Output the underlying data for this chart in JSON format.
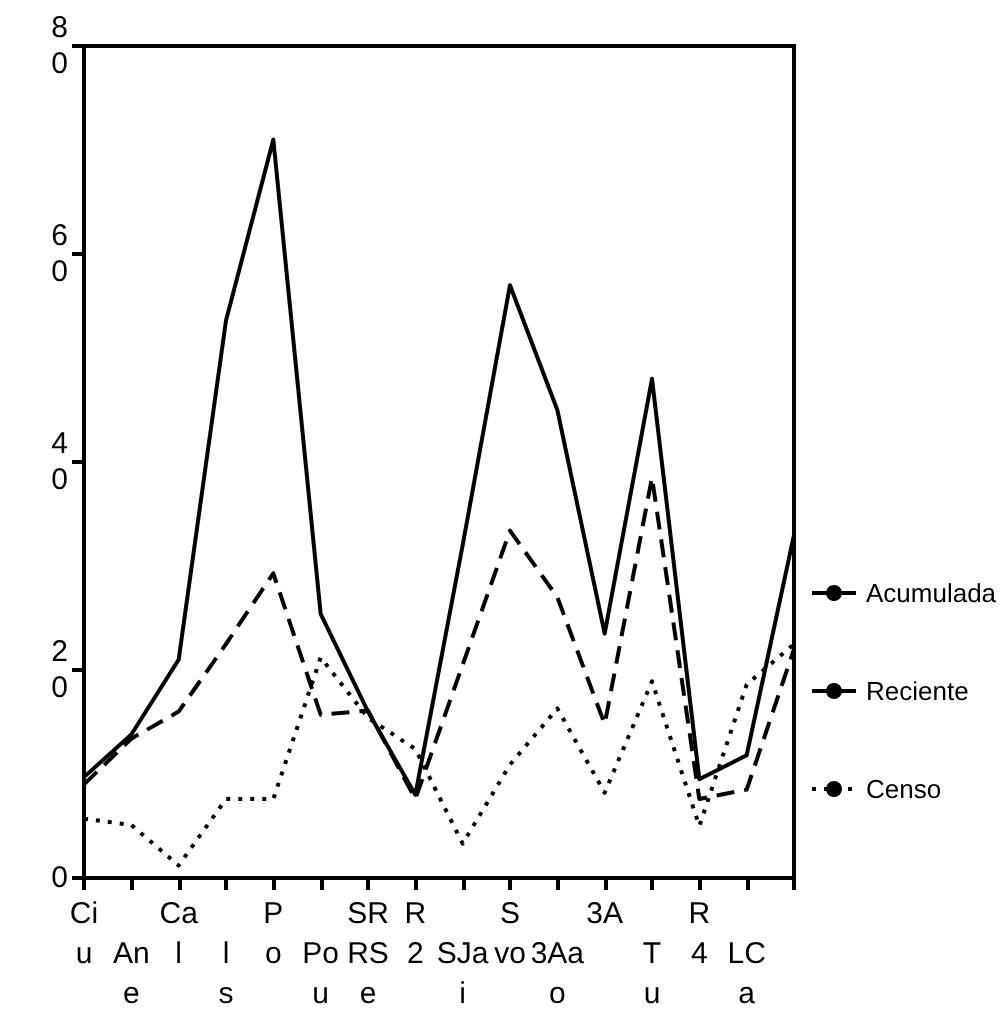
{
  "chart_data": {
    "type": "line",
    "categories": [
      "Ci\nu",
      "\nAn\ne",
      "Ca\nl",
      "\nl\ns",
      "P\no",
      "\nPo\nu",
      "SR\nRS\ne",
      "R\n2",
      "\nSJa\ni",
      "S\nvo",
      "\n3Aa\no",
      "3A",
      "\nT\nu",
      "R\n4",
      "\nLC\na",
      null
    ],
    "series": [
      {
        "name": "Acumulada",
        "color": "#000000",
        "line_style": "solid",
        "values": [
          9.7,
          13.8,
          21,
          53.6,
          71,
          25.4,
          16,
          8,
          32,
          57,
          45,
          23.5,
          48,
          9.5,
          11.8,
          33
        ]
      },
      {
        "name": "Reciente",
        "color": "#000000",
        "line_style": "dashed",
        "values": [
          9,
          13.4,
          16,
          22.5,
          29.3,
          15.7,
          16.1,
          7.6,
          20.5,
          33.4,
          27,
          14.8,
          38.5,
          7.6,
          8.5,
          22
        ]
      },
      {
        "name": "Censo",
        "color": "#000000",
        "line_style": "dotted",
        "values": [
          5.7,
          5.1,
          1.2,
          7.6,
          7.6,
          21.2,
          15.4,
          12.4,
          3.3,
          10.9,
          16.3,
          8.2,
          18.9,
          5,
          18.6,
          22.5
        ]
      }
    ],
    "ylim": [
      0,
      80
    ],
    "yticks": [
      0,
      20,
      40,
      60,
      80
    ],
    "grid": false,
    "legend": "right",
    "marker": "none"
  }
}
